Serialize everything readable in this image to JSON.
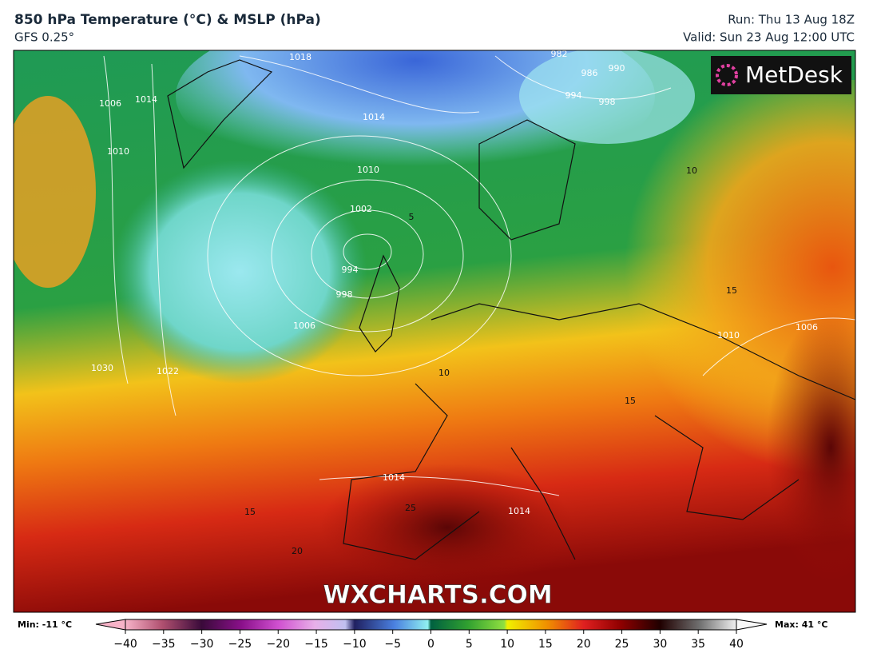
{
  "header": {
    "title": "850 hPa Temperature (°C) & MSLP (hPa)",
    "model": "GFS 0.25°",
    "run": "Run: Thu 13 Aug 18Z",
    "valid": "Valid: Sun 23 Aug 12:00 UTC"
  },
  "map": {
    "logo": "MetDesk",
    "watermark": "WXCHARTS.COM",
    "contour_labels": [
      "1018",
      "1014",
      "1010",
      "1002",
      "994",
      "998",
      "1006",
      "1006",
      "1010",
      "1014",
      "1030",
      "1022",
      "1014",
      "1014",
      "1010",
      "1006",
      "982",
      "986",
      "990",
      "994",
      "998",
      "10",
      "15",
      "15",
      "20",
      "25",
      "15",
      "5",
      "10"
    ]
  },
  "colorbar": {
    "min_label": "Min: -11 °C",
    "max_label": "Max: 41 °C",
    "ticks": [
      {
        "value": -40,
        "label": "−40"
      },
      {
        "value": -35,
        "label": "−35"
      },
      {
        "value": -30,
        "label": "−30"
      },
      {
        "value": -25,
        "label": "−25"
      },
      {
        "value": -20,
        "label": "−20"
      },
      {
        "value": -15,
        "label": "−15"
      },
      {
        "value": -10,
        "label": "−10"
      },
      {
        "value": -5,
        "label": "−5"
      },
      0,
      5,
      10,
      15,
      20,
      25,
      30,
      35,
      40
    ]
  }
}
